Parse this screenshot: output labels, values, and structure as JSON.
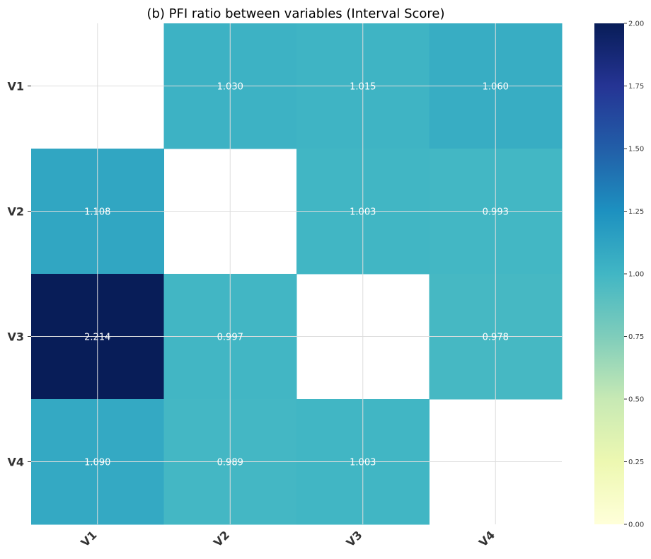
{
  "chart_data": {
    "type": "heatmap",
    "title": "(b) PFI ratio between variables (Interval Score)",
    "rows": [
      "V1",
      "V2",
      "V3",
      "V4"
    ],
    "columns": [
      "V1",
      "V2",
      "V3",
      "V4"
    ],
    "values": [
      [
        null,
        1.03,
        1.015,
        1.06
      ],
      [
        1.108,
        null,
        1.003,
        0.993
      ],
      [
        2.214,
        0.997,
        null,
        0.978
      ],
      [
        1.09,
        0.989,
        1.003,
        null
      ]
    ],
    "labels": [
      [
        null,
        "1.030",
        "1.015",
        "1.060"
      ],
      [
        "1.108",
        null,
        "1.003",
        "0.993"
      ],
      [
        "2.214",
        "0.997",
        null,
        "0.978"
      ],
      [
        "1.090",
        "0.989",
        "1.003",
        null
      ]
    ],
    "colorbar": {
      "colormap": "YlGnBu",
      "vmin": 0,
      "vmax": 2,
      "ticks": [
        "0.00",
        "0.25",
        "0.50",
        "0.75",
        "1.00",
        "1.25",
        "1.50",
        "1.75",
        "2.00"
      ]
    },
    "diagonal_masked": true,
    "grid": true
  }
}
